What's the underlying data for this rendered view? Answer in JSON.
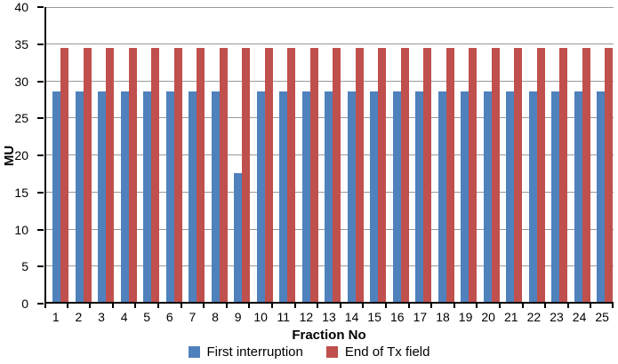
{
  "chart_data": {
    "type": "bar",
    "title": "",
    "xlabel": "Fraction No",
    "ylabel": "MU",
    "ylim": [
      0,
      40
    ],
    "yticks": [
      0,
      5,
      10,
      15,
      20,
      25,
      30,
      35,
      40
    ],
    "grid": true,
    "legend_position": "bottom",
    "categories": [
      "1",
      "2",
      "3",
      "4",
      "5",
      "6",
      "7",
      "8",
      "9",
      "10",
      "11",
      "12",
      "13",
      "14",
      "15",
      "16",
      "17",
      "18",
      "19",
      "20",
      "21",
      "22",
      "23",
      "24",
      "25"
    ],
    "series": [
      {
        "name": "First interruption",
        "color": "#4f81bd",
        "values": [
          28.4,
          28.4,
          28.4,
          28.4,
          28.4,
          28.4,
          28.4,
          28.4,
          17.4,
          28.4,
          28.4,
          28.4,
          28.4,
          28.4,
          28.4,
          28.4,
          28.4,
          28.4,
          28.4,
          28.4,
          28.4,
          28.4,
          28.4,
          28.4,
          28.4
        ]
      },
      {
        "name": "End of Tx field",
        "color": "#c0504d",
        "values": [
          34.3,
          34.3,
          34.3,
          34.3,
          34.3,
          34.3,
          34.3,
          34.3,
          34.3,
          34.3,
          34.3,
          34.3,
          34.3,
          34.3,
          34.3,
          34.3,
          34.3,
          34.3,
          34.3,
          34.3,
          34.3,
          34.3,
          34.3,
          34.3,
          34.3
        ]
      }
    ],
    "colors": {
      "gridline": "#9a9a9a",
      "axis": "#000000",
      "background": "#ffffff"
    }
  }
}
